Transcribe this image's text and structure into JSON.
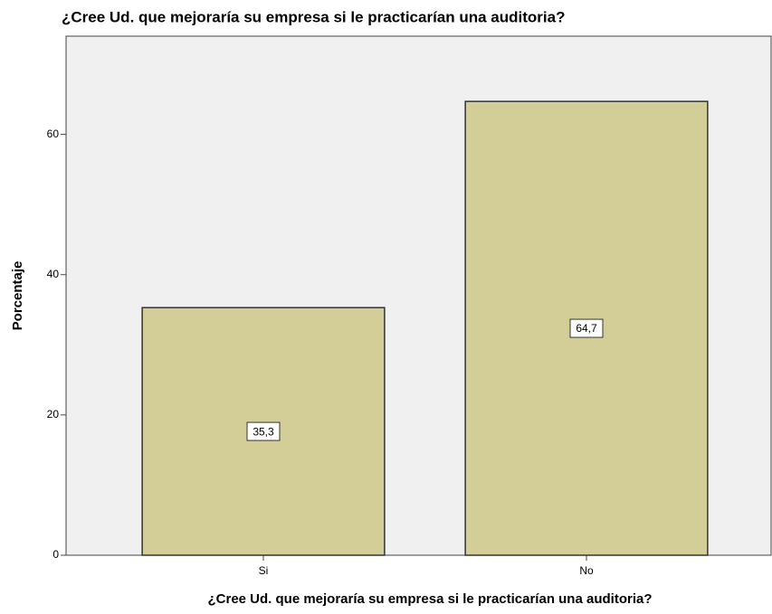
{
  "chart_data": {
    "type": "bar",
    "title": "¿Cree Ud. que mejoraría su empresa si le practicarían una auditoria?",
    "x_label": "¿Cree Ud. que mejoraría su empresa si le practicarían una auditoria?",
    "y_label": "Porcentaje",
    "categories": [
      "Si",
      "No"
    ],
    "values": [
      35.3,
      64.7
    ],
    "value_labels": [
      "35,3",
      "64,7"
    ],
    "color": "#d3ce97",
    "ylim": [
      0,
      74
    ],
    "yticks": [
      0,
      20,
      40,
      60
    ],
    "grid": false
  }
}
